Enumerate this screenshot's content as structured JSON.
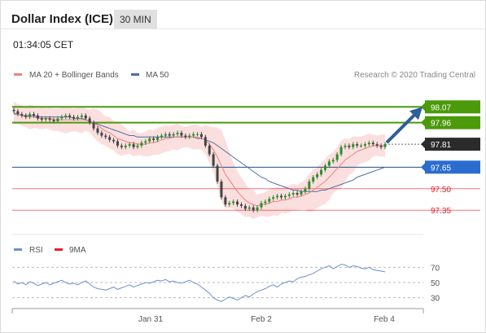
{
  "header": {
    "title": "Dollar Index (ICE)",
    "timeframe": "30 MIN",
    "timestamp": "01:34:05 CET"
  },
  "legend": {
    "ma20": "MA 20 + Bollinger Bands",
    "ma50": "MA 50",
    "copyright": "Research © 2020 Trading Central",
    "rsi": "RSI",
    "rsi_ma": "9MA"
  },
  "colors": {
    "resistance": "#4a9a0a",
    "pivot": "#1f4f85",
    "support": "#e8202a",
    "ma20": "#f08080",
    "ma50": "#4a6fa5",
    "bollinger": "#f7c4c4",
    "rsi": "#6f8fd0",
    "arrow": "#2d5d9a",
    "candle_up": "#2e8b2e",
    "candle_down": "#444444"
  },
  "chart_data": [
    {
      "type": "line",
      "title": "",
      "x_labels": [
        "Jan 31",
        "Feb 2",
        "Feb 4"
      ],
      "ylim": [
        97.3,
        98.1
      ],
      "levels": [
        {
          "value": 98.07,
          "label": "98.07",
          "kind": "resistance"
        },
        {
          "value": 97.96,
          "label": "97.96",
          "kind": "resistance"
        },
        {
          "value": 97.81,
          "label": "97.81",
          "kind": "last"
        },
        {
          "value": 97.65,
          "label": "97.65",
          "kind": "pivot"
        },
        {
          "value": 97.5,
          "label": "97.50",
          "kind": "support"
        },
        {
          "value": 97.35,
          "label": "97.35",
          "kind": "support"
        }
      ],
      "price_series": [
        98.04,
        98.02,
        98.01,
        98.0,
        98.02,
        98.01,
        97.99,
        97.98,
        97.99,
        97.98,
        97.97,
        97.99,
        98.0,
        98.01,
        98.0,
        97.99,
        98.0,
        98.01,
        97.99,
        97.96,
        97.92,
        97.89,
        97.87,
        97.86,
        97.84,
        97.83,
        97.8,
        97.79,
        97.8,
        97.81,
        97.79,
        97.8,
        97.82,
        97.83,
        97.85,
        97.84,
        97.86,
        97.87,
        97.88,
        97.87,
        97.88,
        97.89,
        97.87,
        97.86,
        97.87,
        97.88,
        97.88,
        97.86,
        97.8,
        97.74,
        97.66,
        97.55,
        97.44,
        97.39,
        97.4,
        97.41,
        97.39,
        97.38,
        97.36,
        97.37,
        97.35,
        97.37,
        97.4,
        97.41,
        97.43,
        97.44,
        97.45,
        97.44,
        97.45,
        97.46,
        97.47,
        97.46,
        97.48,
        97.5,
        97.55,
        97.58,
        97.6,
        97.63,
        97.66,
        97.69,
        97.7,
        97.74,
        97.79,
        97.8,
        97.79,
        97.81,
        97.8,
        97.8,
        97.81,
        97.82,
        97.81,
        97.8,
        97.79,
        97.81
      ],
      "ma20": [
        98.03,
        98.02,
        98.01,
        98.0,
        98.0,
        98.0,
        97.99,
        97.99,
        97.99,
        97.99,
        97.98,
        97.98,
        97.98,
        97.98,
        97.98,
        97.98,
        97.98,
        97.98,
        97.98,
        97.97,
        97.96,
        97.94,
        97.92,
        97.9,
        97.89,
        97.87,
        97.85,
        97.84,
        97.83,
        97.82,
        97.82,
        97.81,
        97.81,
        97.81,
        97.82,
        97.82,
        97.83,
        97.84,
        97.85,
        97.85,
        97.86,
        97.86,
        97.86,
        97.86,
        97.86,
        97.86,
        97.86,
        97.85,
        97.84,
        97.81,
        97.77,
        97.72,
        97.66,
        97.6,
        97.56,
        97.52,
        97.48,
        97.45,
        97.42,
        97.4,
        97.39,
        97.38,
        97.39,
        97.39,
        97.4,
        97.41,
        97.41,
        97.42,
        97.42,
        97.43,
        97.44,
        97.44,
        97.45,
        97.46,
        97.47,
        97.49,
        97.51,
        97.53,
        97.55,
        97.58,
        97.61,
        97.64,
        97.67,
        97.7,
        97.72,
        97.74,
        97.76,
        97.77,
        97.78,
        97.79,
        97.8,
        97.8,
        97.8,
        97.8
      ],
      "ma50": [
        98.02,
        98.02,
        98.01,
        98.01,
        98.01,
        98.01,
        98.0,
        98.0,
        98.0,
        98.0,
        98.0,
        98.0,
        98.0,
        98.0,
        98.0,
        97.99,
        97.99,
        97.99,
        97.98,
        97.97,
        97.96,
        97.95,
        97.94,
        97.93,
        97.92,
        97.91,
        97.9,
        97.89,
        97.88,
        97.87,
        97.87,
        97.86,
        97.86,
        97.86,
        97.86,
        97.86,
        97.86,
        97.86,
        97.86,
        97.86,
        97.86,
        97.86,
        97.86,
        97.86,
        97.86,
        97.86,
        97.85,
        97.85,
        97.84,
        97.83,
        97.82,
        97.8,
        97.78,
        97.76,
        97.74,
        97.72,
        97.7,
        97.68,
        97.66,
        97.64,
        97.62,
        97.6,
        97.58,
        97.57,
        97.55,
        97.54,
        97.53,
        97.52,
        97.51,
        97.5,
        97.49,
        97.49,
        97.48,
        97.48,
        97.48,
        97.48,
        97.48,
        97.49,
        97.49,
        97.5,
        97.51,
        97.52,
        97.53,
        97.54,
        97.55,
        97.56,
        97.58,
        97.59,
        97.6,
        97.61,
        97.62,
        97.63,
        97.64,
        97.65
      ]
    },
    {
      "type": "line",
      "title": "",
      "ylim": [
        20,
        80
      ],
      "ticks": [
        70,
        50,
        30
      ],
      "rsi": [
        52,
        48,
        50,
        47,
        51,
        49,
        46,
        48,
        50,
        47,
        49,
        51,
        53,
        50,
        48,
        49,
        47,
        50,
        52,
        48,
        44,
        42,
        41,
        40,
        42,
        44,
        41,
        43,
        45,
        47,
        44,
        46,
        48,
        50,
        49,
        51,
        53,
        52,
        54,
        51,
        52,
        50,
        49,
        51,
        53,
        50,
        48,
        44,
        40,
        36,
        30,
        27,
        25,
        28,
        31,
        29,
        27,
        30,
        33,
        31,
        35,
        38,
        40,
        42,
        45,
        47,
        44,
        48,
        50,
        52,
        51,
        55,
        57,
        58,
        60,
        62,
        65,
        68,
        70,
        72,
        68,
        71,
        74,
        73,
        70,
        72,
        71,
        69,
        68,
        70,
        67,
        66,
        65,
        64
      ],
      "rsi_ma": [
        50,
        49,
        49,
        48,
        49,
        49,
        48,
        48,
        49,
        48,
        48,
        49,
        50,
        50,
        49,
        49,
        48,
        49,
        50,
        49,
        47,
        45,
        43,
        42,
        42,
        42,
        42,
        42,
        43,
        44,
        44,
        45,
        46,
        47,
        48,
        49,
        50,
        51,
        52,
        52,
        52,
        51,
        51,
        51,
        51,
        51,
        50,
        48,
        46,
        43,
        39,
        35,
        32,
        30,
        29,
        29,
        28,
        28,
        29,
        30,
        31,
        33,
        35,
        37,
        39,
        41,
        42,
        44,
        46,
        48,
        49,
        51,
        53,
        55,
        57,
        59,
        61,
        63,
        65,
        67,
        68,
        69,
        70,
        71,
        71,
        71,
        71,
        70,
        70,
        70,
        69,
        68,
        67,
        66
      ]
    }
  ]
}
